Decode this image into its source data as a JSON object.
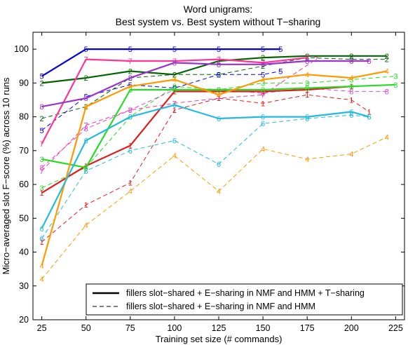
{
  "chart_data": {
    "type": "line",
    "title_lines": [
      "Word unigrams:",
      "Best system vs. Best system without T−sharing"
    ],
    "xlabel": "Training set size (# commands)",
    "ylabel": "Micro−averaged slot F−score (%) across 10 runs",
    "xlim": [
      20,
      230
    ],
    "ylim": [
      20,
      105
    ],
    "xticks": [
      25,
      50,
      75,
      100,
      125,
      150,
      175,
      200,
      225
    ],
    "yticks": [
      20,
      30,
      40,
      50,
      60,
      70,
      80,
      90,
      100
    ],
    "grid": false,
    "legend": {
      "placement": "bottom-right",
      "entries": [
        {
          "label": "fillers slot−shared + E−sharing in NMF and HMM + T−sharing",
          "style": "solid"
        },
        {
          "label": "fillers slot−shared + E−sharing in NMF and HMM",
          "style": "dashed"
        }
      ]
    },
    "series": [
      {
        "marker": "1",
        "color": "#e31a1c",
        "style": "solid",
        "x": [
          25,
          50,
          75,
          100,
          125,
          150,
          175,
          200
        ],
        "y": [
          57.5,
          65.5,
          71.5,
          87.5,
          87.5,
          87.5,
          88.0,
          89.0
        ]
      },
      {
        "marker": "1",
        "color": "#e31a1c",
        "style": "dashed",
        "x": [
          25,
          50,
          75,
          100,
          125,
          150,
          175,
          200,
          210
        ],
        "y": [
          43,
          54,
          60.5,
          82,
          85.5,
          84,
          86.5,
          85,
          81.5
        ]
      },
      {
        "marker": "2",
        "color": "#006400",
        "style": "solid",
        "x": [
          25,
          50,
          75,
          100,
          125,
          150,
          175,
          200,
          220
        ],
        "y": [
          90,
          91.5,
          93.5,
          92.5,
          96.5,
          97.5,
          98,
          98,
          98
        ]
      },
      {
        "marker": "2",
        "color": "#006400",
        "style": "dashed",
        "x": [
          25,
          50,
          75,
          100,
          125,
          150,
          175,
          200,
          220
        ],
        "y": [
          79.5,
          83,
          91.5,
          92.5,
          92.5,
          95,
          97.5,
          97,
          97
        ]
      },
      {
        "marker": "3",
        "color": "#22dd22",
        "style": "solid",
        "x": [
          25,
          50,
          75,
          100,
          125,
          150,
          175,
          200,
          225
        ],
        "y": [
          67.5,
          65,
          88,
          88,
          88,
          88,
          88.5,
          89,
          89.5
        ]
      },
      {
        "marker": "3",
        "color": "#22dd22",
        "style": "dashed",
        "x": [
          25,
          50,
          75,
          100,
          125,
          150,
          175,
          200,
          225
        ],
        "y": [
          59,
          65,
          80,
          89,
          88,
          90,
          90,
          91,
          92
        ]
      },
      {
        "marker": "4",
        "color": "#ff9900",
        "style": "solid",
        "x": [
          25,
          50,
          75,
          100,
          125,
          150,
          175,
          200,
          220
        ],
        "y": [
          36,
          83,
          89,
          91,
          86.5,
          91,
          92.5,
          91.5,
          93.5
        ]
      },
      {
        "marker": "4",
        "color": "#ff9900",
        "style": "dashed",
        "x": [
          25,
          50,
          75,
          100,
          125,
          150,
          175,
          200,
          220
        ],
        "y": [
          32,
          48,
          58,
          68.5,
          58,
          70.5,
          67.5,
          69,
          74
        ]
      },
      {
        "marker": "5",
        "color": "#0000dd",
        "style": "solid",
        "x": [
          25,
          50,
          75,
          100,
          125,
          150,
          160
        ],
        "y": [
          92,
          100,
          100,
          100,
          100,
          100,
          100
        ]
      },
      {
        "marker": "5",
        "color": "#0000dd",
        "style": "dashed",
        "x": [
          25,
          50,
          75,
          100,
          125,
          150,
          160
        ],
        "y": [
          76,
          86,
          89.5,
          88.5,
          92.5,
          92.5,
          93.5
        ]
      },
      {
        "marker": "6",
        "color": "#22bbdd",
        "style": "solid",
        "x": [
          25,
          50,
          75,
          100,
          125,
          150,
          175,
          200,
          210
        ],
        "y": [
          47,
          73,
          80,
          83.5,
          79.5,
          80,
          80,
          81.5,
          80
        ]
      },
      {
        "marker": "6",
        "color": "#22bbdd",
        "style": "dashed",
        "x": [
          25,
          50,
          75,
          100,
          125,
          150,
          175,
          200,
          210
        ],
        "y": [
          44,
          64,
          70,
          73,
          66,
          78,
          79.5,
          80.5,
          80
        ]
      },
      {
        "marker": "7",
        "color": "#ff3399",
        "style": "solid",
        "x": [
          25,
          50,
          75,
          100,
          125,
          150,
          175
        ],
        "y": [
          72,
          97,
          96.5,
          96.5,
          97,
          96,
          97.5
        ]
      },
      {
        "marker": "7",
        "color": "#ff3399",
        "style": "dashed",
        "x": [
          25,
          50,
          75,
          100,
          125,
          150,
          180
        ],
        "y": [
          64,
          77.5,
          82,
          84,
          85.5,
          86.5,
          97
        ]
      },
      {
        "marker": "8",
        "color": "#9933cc",
        "style": "solid",
        "x": [
          25,
          50,
          75,
          100,
          125,
          150,
          175,
          200,
          210
        ],
        "y": [
          83,
          85.5,
          91.5,
          96,
          95.5,
          95.5,
          96.5,
          96.5,
          96.5
        ]
      },
      {
        "marker": "8",
        "color": "#dd44dd",
        "style": "dashed",
        "x": [
          25,
          50,
          75,
          100,
          125,
          150,
          175,
          200,
          220
        ],
        "y": [
          65,
          76.5,
          82,
          88,
          88,
          87,
          88.5,
          87.5,
          87.5
        ]
      }
    ]
  }
}
